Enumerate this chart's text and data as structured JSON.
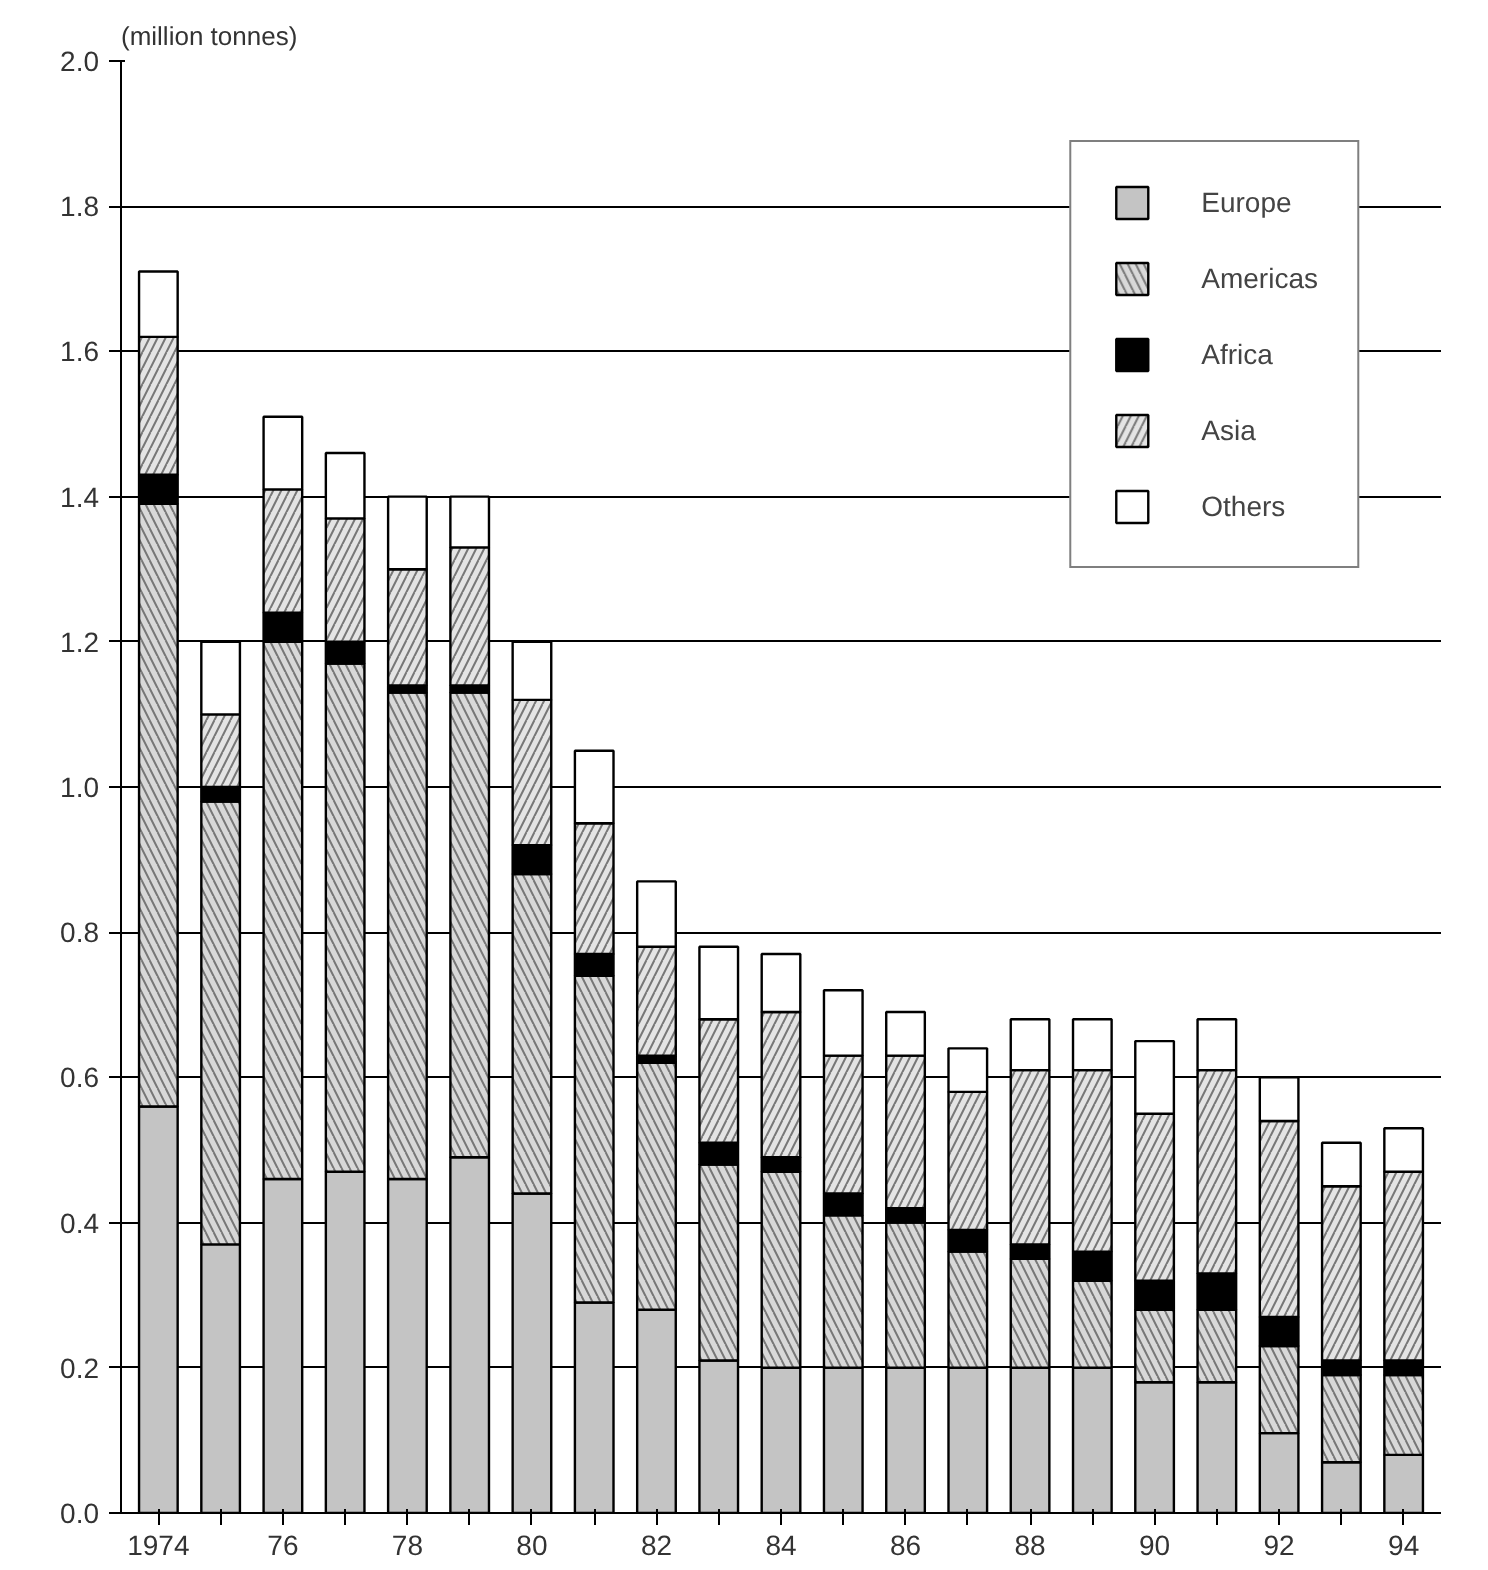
{
  "chart_data": {
    "type": "bar",
    "stacked": true,
    "ylabel": "(million tonnes)",
    "categories": [
      "1974",
      null,
      "76",
      null,
      "78",
      null,
      "80",
      null,
      "82",
      null,
      "84",
      null,
      "86",
      null,
      "88",
      null,
      "90",
      null,
      "92",
      null,
      "94"
    ],
    "series": [
      {
        "name": "Europe",
        "color": "#c4c4c4",
        "values": [
          0.56,
          0.37,
          0.46,
          0.47,
          0.46,
          0.49,
          0.44,
          0.29,
          0.28,
          0.21,
          0.2,
          0.2,
          0.2,
          0.2,
          0.2,
          0.2,
          0.18,
          0.18,
          0.11,
          0.07,
          0.08
        ]
      },
      {
        "name": "Americas",
        "color": "#d8d8d8",
        "values": [
          0.83,
          0.61,
          0.74,
          0.7,
          0.67,
          0.64,
          0.44,
          0.45,
          0.34,
          0.27,
          0.27,
          0.21,
          0.2,
          0.16,
          0.15,
          0.12,
          0.1,
          0.1,
          0.12,
          0.12,
          0.11
        ]
      },
      {
        "name": "Africa",
        "color": "#000000",
        "values": [
          0.04,
          0.02,
          0.04,
          0.03,
          0.01,
          0.01,
          0.04,
          0.03,
          0.01,
          0.03,
          0.02,
          0.03,
          0.02,
          0.03,
          0.02,
          0.04,
          0.04,
          0.05,
          0.04,
          0.02,
          0.02
        ]
      },
      {
        "name": "Asia",
        "color": "#e4e4e4",
        "values": [
          0.19,
          0.1,
          0.17,
          0.17,
          0.16,
          0.19,
          0.2,
          0.18,
          0.15,
          0.17,
          0.2,
          0.19,
          0.21,
          0.19,
          0.24,
          0.25,
          0.23,
          0.28,
          0.27,
          0.24,
          0.26
        ]
      },
      {
        "name": "Others",
        "color": "#ffffff",
        "values": [
          0.09,
          0.1,
          0.1,
          0.09,
          0.1,
          0.07,
          0.08,
          0.1,
          0.09,
          0.1,
          0.08,
          0.09,
          0.06,
          0.06,
          0.07,
          0.07,
          0.1,
          0.07,
          0.06,
          0.06,
          0.06
        ]
      }
    ],
    "ylim": [
      0,
      2.0
    ],
    "yticks": [
      {
        "value": 0,
        "label": "0.0"
      },
      {
        "value": 0.2,
        "label": "0.2"
      },
      {
        "value": 0.4,
        "label": "0.4"
      },
      {
        "value": 0.6,
        "label": "0.6"
      },
      {
        "value": 0.8,
        "label": "0.8"
      },
      {
        "value": 1.0,
        "label": "1.0"
      },
      {
        "value": 1.2,
        "label": "1.2"
      },
      {
        "value": 1.4,
        "label": "1.4"
      },
      {
        "value": 1.6,
        "label": "1.6"
      },
      {
        "value": 1.8,
        "label": "1.8"
      },
      {
        "value": 2.0,
        "label": "2.0"
      }
    ],
    "grid": "y",
    "legend": "top right"
  }
}
